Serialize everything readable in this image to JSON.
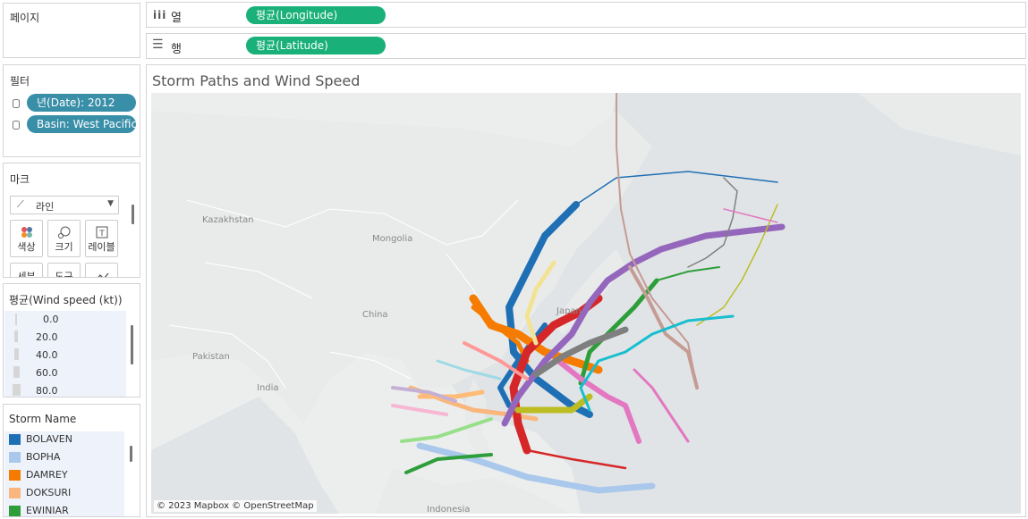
{
  "pages_panel": {
    "title": "페이지"
  },
  "shelves": {
    "columns": {
      "icon": "columns-icon",
      "label": "열",
      "pill": "평균(Longitude)"
    },
    "rows": {
      "icon": "rows-icon",
      "label": "행",
      "pill": "평균(Latitude)"
    }
  },
  "filters": {
    "title": "필터",
    "items": [
      {
        "label": "년(Date): 2012"
      },
      {
        "label": "Basin: West Pacific"
      }
    ]
  },
  "marks": {
    "title": "마크",
    "type_label": "라인",
    "buttons": [
      {
        "label": "색상",
        "icon": "color-dots-icon"
      },
      {
        "label": "크기",
        "icon": "size-icon"
      },
      {
        "label": "레이블",
        "icon": "label-icon"
      },
      {
        "label": "세부",
        "icon": "detail-icon"
      },
      {
        "label": "도구",
        "icon": "tooltip-icon"
      },
      {
        "label": "",
        "icon": "path-icon"
      }
    ]
  },
  "size_legend": {
    "title": "평균(Wind speed (kt))",
    "items": [
      "0.0",
      "20.0",
      "40.0",
      "60.0",
      "80.0"
    ]
  },
  "color_legend": {
    "title": "Storm Name",
    "items": [
      {
        "name": "BOLAVEN",
        "color": "#1f6fb5"
      },
      {
        "name": "BOPHA",
        "color": "#a9c8ec"
      },
      {
        "name": "DAMREY",
        "color": "#f57c00"
      },
      {
        "name": "DOKSURI",
        "color": "#f9b77e"
      },
      {
        "name": "EWINIAR",
        "color": "#2e9e3a"
      }
    ]
  },
  "view": {
    "title": "Storm Paths and Wind Speed",
    "map_labels": {
      "kazakhstan": "Kazakhstan",
      "mongolia": "Mongolia",
      "china": "China",
      "pakistan": "Pakistan",
      "india": "India",
      "japan": "Japan",
      "indonesia": "Indonesia"
    },
    "attribution": "© 2023 Mapbox © OpenStreetMap"
  }
}
